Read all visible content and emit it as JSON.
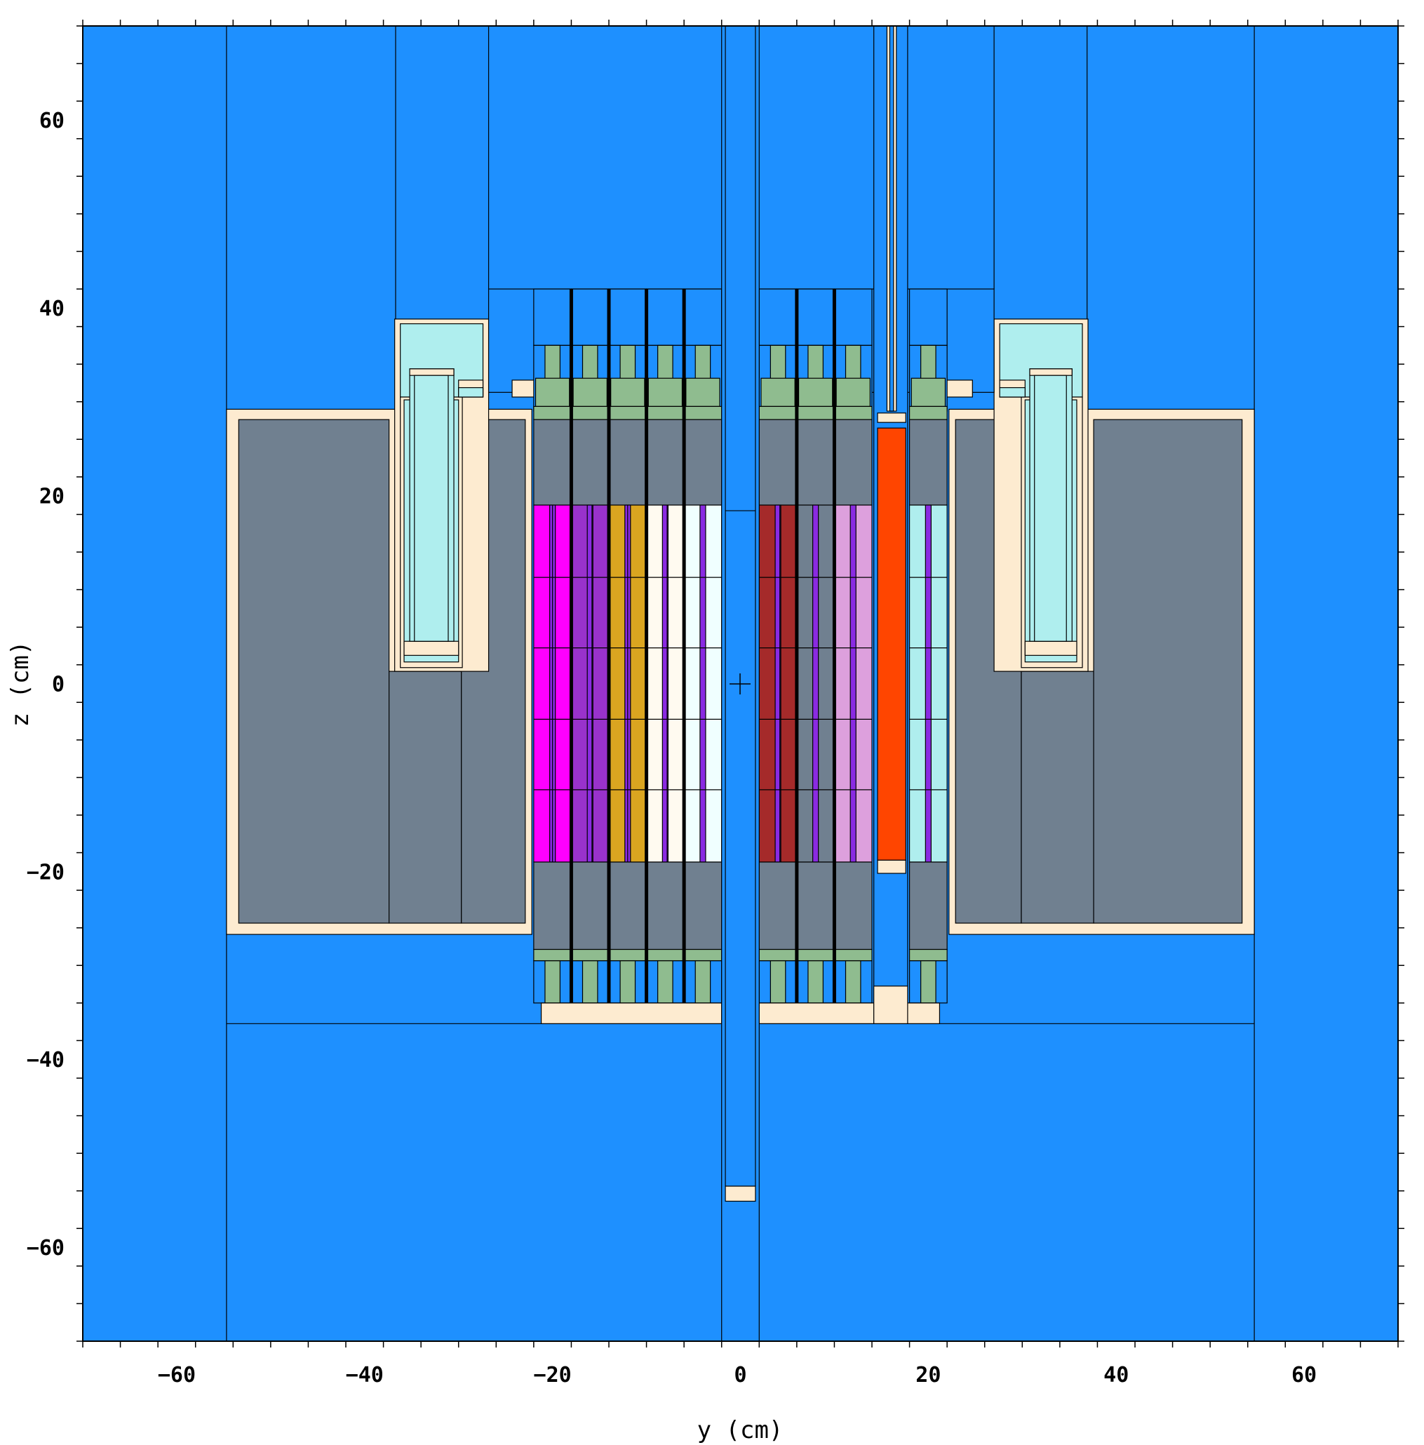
{
  "figure": {
    "x_axis_label": "y (cm)",
    "y_axis_label": "z (cm)",
    "x_range": [
      -70,
      70
    ],
    "y_range": [
      -70,
      70
    ],
    "x_ticks": [
      -60,
      -40,
      -20,
      0,
      20,
      40,
      60
    ],
    "y_ticks": [
      -60,
      -40,
      -20,
      0,
      20,
      40,
      60
    ],
    "x_tick_labels": [
      "−60",
      "−40",
      "−20",
      "0",
      "20",
      "40",
      "60"
    ],
    "y_tick_labels": [
      "−60",
      "−40",
      "−20",
      "0",
      "20",
      "40",
      "60"
    ],
    "origin_marker": "+"
  },
  "colors": {
    "water": "#1e90ff",
    "graphite": "#708090",
    "clad": "#fdebd0",
    "grid_plate": "#8fbc8f",
    "fuel_a": "#ff00ff",
    "fuel_b": "#9932cc",
    "fuel_c": "#daa520",
    "fuel_d": "#fffaf0",
    "fuel_e": "#f0ffff",
    "fuel_f": "#a52a2a",
    "fuel_g": "#dda0dd",
    "control_rod": "#ff4500",
    "absorber_strip": "#8a2be2",
    "irradiation": "#afeeee"
  }
}
